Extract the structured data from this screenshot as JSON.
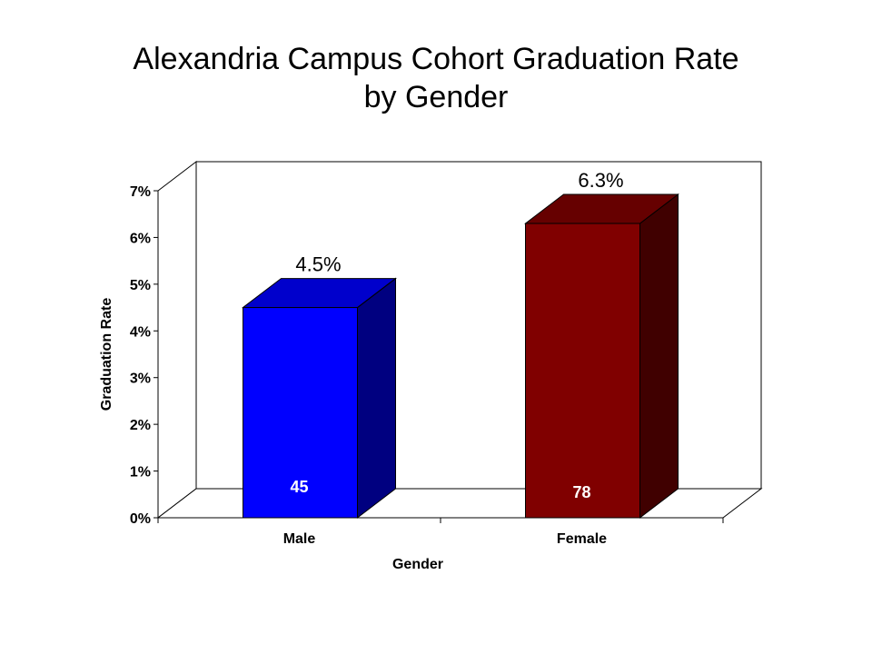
{
  "title": {
    "line1": "Alexandria Campus Cohort Graduation Rate",
    "line2": "by Gender"
  },
  "chart_data": {
    "type": "bar",
    "three_d": true,
    "title": "Alexandria Campus Cohort Graduation Rate by Gender",
    "xlabel": "Gender",
    "ylabel": "Graduation Rate",
    "categories": [
      "Male",
      "Female"
    ],
    "values": [
      4.5,
      6.3
    ],
    "value_labels": [
      "4.5%",
      "6.3%"
    ],
    "count_labels": [
      "45",
      "78"
    ],
    "ylim": [
      0,
      7
    ],
    "y_ticks": [
      "0%",
      "1%",
      "2%",
      "3%",
      "4%",
      "5%",
      "6%",
      "7%"
    ],
    "grid": false,
    "legend": "none",
    "colors": {
      "Male": {
        "front": "#0000ff",
        "top": "#0000cc",
        "side": "#000080"
      },
      "Female": {
        "front": "#800000",
        "top": "#660000",
        "side": "#400000"
      },
      "count_label_color": "#ffffff"
    }
  }
}
